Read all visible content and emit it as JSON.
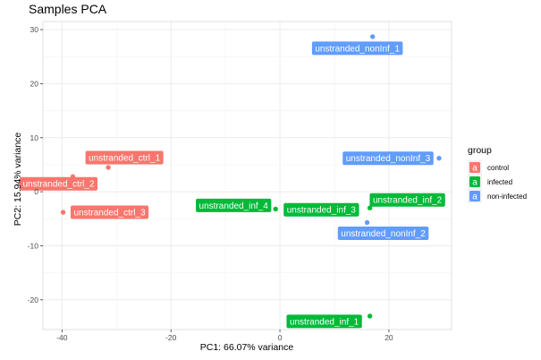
{
  "chart_data": {
    "type": "scatter",
    "title": "Samples PCA",
    "xlabel": "PC1: 66.07% variance",
    "ylabel": "PC2: 15.94% variance",
    "xlim": [
      -43.5,
      31.5
    ],
    "ylim": [
      -25.5,
      31.5
    ],
    "x_ticks": [
      -40,
      -20,
      0,
      20
    ],
    "y_ticks": [
      -20,
      -10,
      0,
      10,
      20,
      30
    ],
    "grid": true,
    "legend": {
      "title": "group",
      "position": "right",
      "key_glyph": "a",
      "entries": [
        {
          "label": "control",
          "color": "#F8766D"
        },
        {
          "label": "infected",
          "color": "#00BA38"
        },
        {
          "label": "non-infected",
          "color": "#619CFF"
        }
      ]
    },
    "points": [
      {
        "label": "unstranded_ctrl_1",
        "group": "control",
        "x": -31.5,
        "y": 4.5
      },
      {
        "label": "unstranded_ctrl_2",
        "group": "control",
        "x": -38,
        "y": 2.8
      },
      {
        "label": "unstranded_ctrl_3",
        "group": "control",
        "x": -39.8,
        "y": -3.8
      },
      {
        "label": "unstranded_inf_1",
        "group": "infected",
        "x": 16.5,
        "y": -23
      },
      {
        "label": "unstranded_inf_2",
        "group": "infected",
        "x": 16.5,
        "y": -3
      },
      {
        "label": "unstranded_inf_3",
        "group": "infected",
        "x": 14,
        "y": -4
      },
      {
        "label": "unstranded_inf_4",
        "group": "infected",
        "x": -0.8,
        "y": -3.2
      },
      {
        "label": "unstranded_nonInf_1",
        "group": "non-infected",
        "x": 17,
        "y": 28.7
      },
      {
        "label": "unstranded_nonInf_2",
        "group": "non-infected",
        "x": 16,
        "y": -5.7
      },
      {
        "label": "unstranded_nonInf_3",
        "group": "non-infected",
        "x": 29.2,
        "y": 6.2
      }
    ]
  }
}
